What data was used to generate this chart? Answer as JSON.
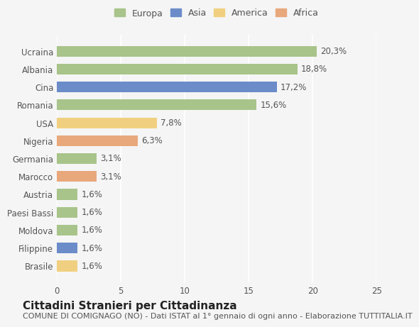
{
  "categories": [
    "Brasile",
    "Filippine",
    "Moldova",
    "Paesi Bassi",
    "Austria",
    "Marocco",
    "Germania",
    "Nigeria",
    "USA",
    "Romania",
    "Cina",
    "Albania",
    "Ucraina"
  ],
  "values": [
    1.6,
    1.6,
    1.6,
    1.6,
    1.6,
    3.1,
    3.1,
    6.3,
    7.8,
    15.6,
    17.2,
    18.8,
    20.3
  ],
  "continents": [
    "America",
    "Asia",
    "Europa",
    "Europa",
    "Europa",
    "Africa",
    "Europa",
    "Africa",
    "America",
    "Europa",
    "Asia",
    "Europa",
    "Europa"
  ],
  "colors": {
    "Europa": "#a8c48a",
    "Asia": "#6b8cc9",
    "America": "#f0d080",
    "Africa": "#e8a87c"
  },
  "bar_colors": [
    "#f0d080",
    "#6b8cc9",
    "#a8c48a",
    "#a8c48a",
    "#a8c48a",
    "#e8a87c",
    "#a8c48a",
    "#e8a87c",
    "#f0d080",
    "#a8c48a",
    "#6b8cc9",
    "#a8c48a",
    "#a8c48a"
  ],
  "xlim": [
    0,
    25
  ],
  "xticks": [
    0,
    5,
    10,
    15,
    20,
    25
  ],
  "title": "Cittadini Stranieri per Cittadinanza",
  "subtitle": "COMUNE DI COMIGNAGO (NO) - Dati ISTAT al 1° gennaio di ogni anno - Elaborazione TUTTITALIA.IT",
  "legend_labels": [
    "Europa",
    "Asia",
    "America",
    "Africa"
  ],
  "legend_colors": [
    "#a8c48a",
    "#6b8cc9",
    "#f0d080",
    "#e8a87c"
  ],
  "bg_color": "#f5f5f5",
  "bar_height": 0.6,
  "title_fontsize": 11,
  "subtitle_fontsize": 8,
  "label_fontsize": 8.5,
  "tick_fontsize": 8.5
}
